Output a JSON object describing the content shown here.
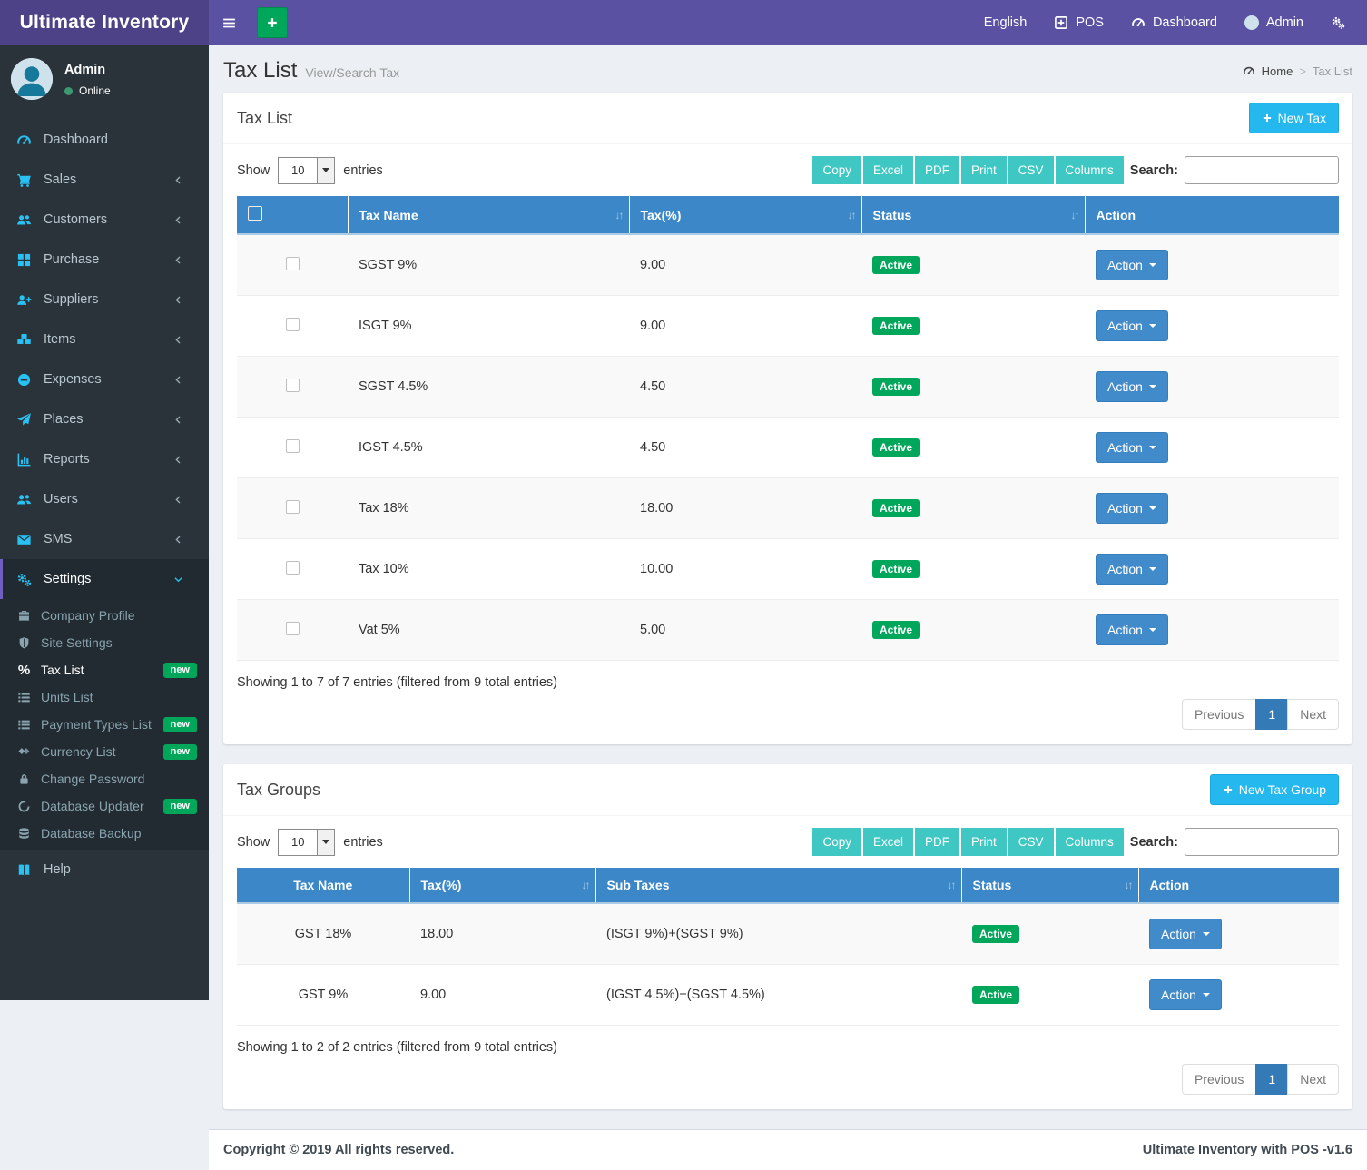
{
  "colors": {
    "navbar_bg": "#5b51a2",
    "brand_bg": "#4d4287",
    "sidebar_bg": "#2a333a",
    "submenu_bg": "#222b31",
    "sidebar_icon": "#29c0f2",
    "green": "#00a65a",
    "table_header": "#3b87c8",
    "action_button": "#428bca",
    "new_tax_button": "#24b8ef",
    "export_button": "#3fc8c3",
    "pagination_active": "#337ab7",
    "page_bg": "#ecf0f5",
    "settings_active_border": "#6e5fc0"
  },
  "navbar": {
    "brand": "Ultimate Inventory",
    "menu_toggle_icon": "hamburger-icon",
    "quick_add_icon": "plus-icon",
    "right_menu": [
      {
        "id": "language",
        "label": "English",
        "icon": null
      },
      {
        "id": "pos",
        "label": "POS",
        "icon": "plus-square-icon"
      },
      {
        "id": "dashboard",
        "label": "Dashboard",
        "icon": "speedometer-icon"
      },
      {
        "id": "user",
        "label": "Admin",
        "icon": "avatar"
      },
      {
        "id": "settings",
        "label": "",
        "icon": "gears-icon"
      }
    ]
  },
  "sidebar": {
    "user": {
      "name": "Admin",
      "status": "Online"
    },
    "items": [
      {
        "label": "Dashboard",
        "icon": "speedometer-icon",
        "expandable": false,
        "active": false
      },
      {
        "label": "Sales",
        "icon": "cart-icon",
        "expandable": true,
        "active": false
      },
      {
        "label": "Customers",
        "icon": "users-icon",
        "expandable": true,
        "active": false
      },
      {
        "label": "Purchase",
        "icon": "grid-icon",
        "expandable": true,
        "active": false
      },
      {
        "label": "Suppliers",
        "icon": "user-plus-icon",
        "expandable": true,
        "active": false
      },
      {
        "label": "Items",
        "icon": "cubes-icon",
        "expandable": true,
        "active": false
      },
      {
        "label": "Expenses",
        "icon": "minus-circle-icon",
        "expandable": true,
        "active": false
      },
      {
        "label": "Places",
        "icon": "paper-plane-icon",
        "expandable": true,
        "active": false
      },
      {
        "label": "Reports",
        "icon": "bar-chart-icon",
        "expandable": true,
        "active": false
      },
      {
        "label": "Users",
        "icon": "users-icon",
        "expandable": true,
        "active": false
      },
      {
        "label": "SMS",
        "icon": "envelope-icon",
        "expandable": true,
        "active": false
      },
      {
        "label": "Settings",
        "icon": "gears-icon",
        "expandable": true,
        "active": true,
        "expanded": true
      }
    ],
    "settings_children": [
      {
        "label": "Company Profile",
        "icon": "briefcase-icon",
        "badge": null,
        "active": false
      },
      {
        "label": "Site Settings",
        "icon": "shield-icon",
        "badge": null,
        "active": false
      },
      {
        "label": "Tax List",
        "icon": "percent-icon",
        "badge": "new",
        "active": true
      },
      {
        "label": "Units List",
        "icon": "list-icon",
        "badge": null,
        "active": false
      },
      {
        "label": "Payment Types List",
        "icon": "list-icon",
        "badge": "new",
        "active": false
      },
      {
        "label": "Currency List",
        "icon": "diamonds-icon",
        "badge": "new",
        "active": false
      },
      {
        "label": "Change Password",
        "icon": "lock-icon",
        "badge": null,
        "active": false
      },
      {
        "label": "Database Updater",
        "icon": "circle-icon",
        "badge": "new",
        "active": false
      },
      {
        "label": "Database Backup",
        "icon": "database-icon",
        "badge": null,
        "active": false
      }
    ],
    "help_item": {
      "label": "Help",
      "icon": "book-icon"
    }
  },
  "page": {
    "title": "Tax List",
    "subtitle": "View/Search Tax",
    "breadcrumb": {
      "home": "Home",
      "separator": ">",
      "current": "Tax List",
      "home_icon": "speedometer-icon"
    }
  },
  "panels": [
    {
      "title": "Tax List",
      "new_button": {
        "label": "New Tax",
        "icon": "plus-icon"
      },
      "length_control": {
        "show": "Show",
        "value": "10",
        "entries": "entries"
      },
      "export_buttons": [
        "Copy",
        "Excel",
        "PDF",
        "Print",
        "CSV",
        "Columns"
      ],
      "search": {
        "label": "Search:",
        "value": ""
      },
      "columns": [
        {
          "label": "Tax Name",
          "sortable": true
        },
        {
          "label": "Tax(%)",
          "sortable": true
        },
        {
          "label": "Status",
          "sortable": true
        },
        {
          "label": "Action",
          "sortable": false
        }
      ],
      "rows": [
        {
          "cells": [
            "SGST 9%",
            "9.00"
          ],
          "status": "Active",
          "action": "Action"
        },
        {
          "cells": [
            "ISGT 9%",
            "9.00"
          ],
          "status": "Active",
          "action": "Action"
        },
        {
          "cells": [
            "SGST 4.5%",
            "4.50"
          ],
          "status": "Active",
          "action": "Action"
        },
        {
          "cells": [
            "IGST 4.5%",
            "4.50"
          ],
          "status": "Active",
          "action": "Action"
        },
        {
          "cells": [
            "Tax 18%",
            "18.00"
          ],
          "status": "Active",
          "action": "Action"
        },
        {
          "cells": [
            "Tax 10%",
            "10.00"
          ],
          "status": "Active",
          "action": "Action"
        },
        {
          "cells": [
            "Vat 5%",
            "5.00"
          ],
          "status": "Active",
          "action": "Action"
        }
      ],
      "summary": "Showing 1 to 7 of 7 entries (filtered from 9 total entries)",
      "pagination": {
        "previous": "Previous",
        "pages": [
          "1"
        ],
        "active_page": "1",
        "next": "Next"
      }
    },
    {
      "title": "Tax Groups",
      "new_button": {
        "label": "New Tax Group",
        "icon": "plus-icon"
      },
      "length_control": {
        "show": "Show",
        "value": "10",
        "entries": "entries"
      },
      "export_buttons": [
        "Copy",
        "Excel",
        "PDF",
        "Print",
        "CSV",
        "Columns"
      ],
      "search": {
        "label": "Search:",
        "value": ""
      },
      "columns": [
        {
          "label": "Tax Name",
          "sortable": false
        },
        {
          "label": "Tax(%)",
          "sortable": true
        },
        {
          "label": "Sub Taxes",
          "sortable": true
        },
        {
          "label": "Status",
          "sortable": true
        },
        {
          "label": "Action",
          "sortable": false
        }
      ],
      "rows": [
        {
          "cells": [
            "GST 18%",
            "18.00",
            "(ISGT 9%)+(SGST 9%)"
          ],
          "status": "Active",
          "action": "Action"
        },
        {
          "cells": [
            "GST 9%",
            "9.00",
            "(IGST 4.5%)+(SGST 4.5%)"
          ],
          "status": "Active",
          "action": "Action"
        }
      ],
      "summary": "Showing 1 to 2 of 2 entries (filtered from 9 total entries)",
      "pagination": {
        "previous": "Previous",
        "pages": [
          "1"
        ],
        "active_page": "1",
        "next": "Next"
      }
    }
  ],
  "footer": {
    "left": "Copyright © 2019 All rights reserved.",
    "right": "Ultimate Inventory with POS -v1.6"
  }
}
